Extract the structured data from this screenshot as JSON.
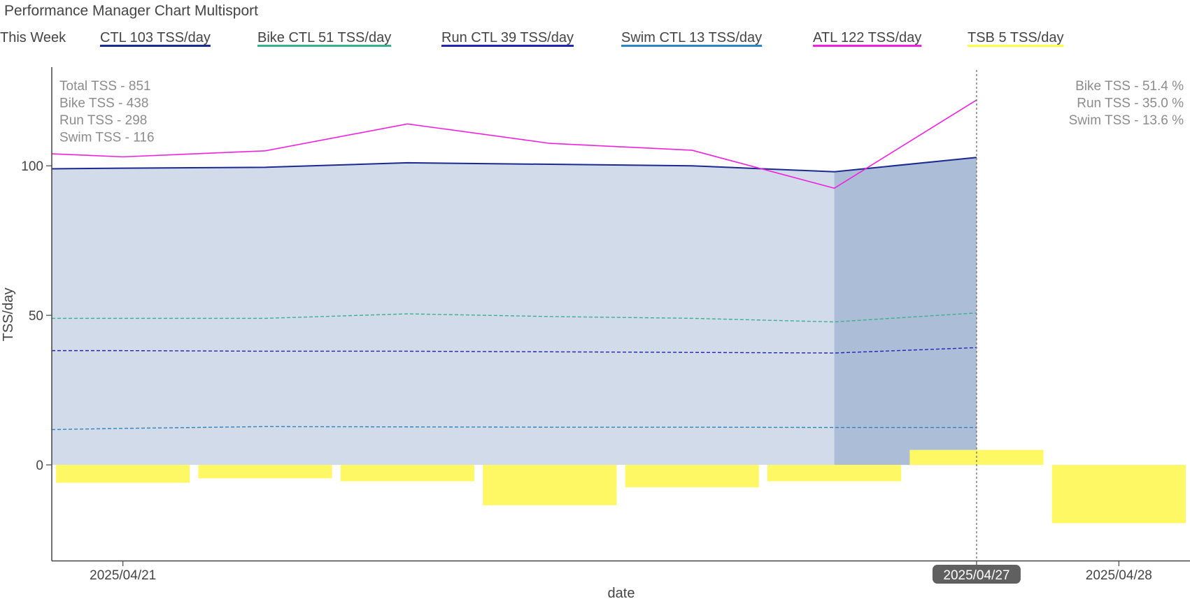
{
  "header": {
    "title": "Performance Manager Chart Multisport",
    "week_label": "This Week"
  },
  "legend": [
    {
      "label": "CTL  103 TSS/day",
      "color": "#1b2a8f"
    },
    {
      "label": "Bike CTL  51 TSS/day",
      "color": "#3cb08c"
    },
    {
      "label": "Run CTL  39 TSS/day",
      "color": "#2226b5"
    },
    {
      "label": "Swim CTL  13 TSS/day",
      "color": "#2b86c3"
    },
    {
      "label": "ATL  122 TSS/day",
      "color": "#ee22dd"
    },
    {
      "label": "TSB  5 TSS/day",
      "color": "#ffff44"
    }
  ],
  "stats_left": [
    "Total TSS - 851",
    "Bike TSS - 438",
    "Run TSS - 298",
    "Swim TSS - 116"
  ],
  "stats_right": [
    "Bike TSS - 51.4 %",
    "Run TSS - 35.0 %",
    "Swim TSS - 13.6 %"
  ],
  "chart_data": {
    "type": "line",
    "xlabel": "date",
    "ylabel": "TSS/day",
    "x": [
      "2025/04/21",
      "2025/04/22",
      "2025/04/23",
      "2025/04/24",
      "2025/04/25",
      "2025/04/26",
      "2025/04/27"
    ],
    "x_tick_labels": [
      "2025/04/21",
      "2025/04/27",
      "2025/04/28"
    ],
    "highlighted_date": "2025/04/27",
    "xlim": [
      "2025/04/20 12:00",
      "2025/04/28 12:00"
    ],
    "ylim": [
      -32,
      133
    ],
    "y_ticks": [
      0,
      50,
      100
    ],
    "grid": false,
    "series": [
      {
        "name": "CTL",
        "style": "area-solid",
        "color": "#1b2a8f",
        "fill": "#d1dbe9",
        "current_fill": "#abbdd7",
        "x": [
          "2025/04/20 12:00",
          "2025/04/21",
          "2025/04/22",
          "2025/04/23",
          "2025/04/24",
          "2025/04/25",
          "2025/04/26",
          "2025/04/27"
        ],
        "values": [
          99,
          99.2,
          99.5,
          101,
          100.5,
          100,
          98,
          102.8
        ]
      },
      {
        "name": "Bike CTL",
        "style": "dashed",
        "color": "#3cb08c",
        "x": [
          "2025/04/20 12:00",
          "2025/04/21",
          "2025/04/22",
          "2025/04/23",
          "2025/04/24",
          "2025/04/25",
          "2025/04/26",
          "2025/04/27"
        ],
        "values": [
          49,
          49,
          49,
          50.5,
          49.6,
          49,
          47.8,
          50.8
        ]
      },
      {
        "name": "Run CTL",
        "style": "dashed",
        "color": "#2226b5",
        "x": [
          "2025/04/20 12:00",
          "2025/04/21",
          "2025/04/22",
          "2025/04/23",
          "2025/04/24",
          "2025/04/25",
          "2025/04/26",
          "2025/04/27"
        ],
        "values": [
          38.2,
          38.2,
          38,
          38,
          37.8,
          37.6,
          37.4,
          39.2
        ]
      },
      {
        "name": "Swim CTL",
        "style": "dashed",
        "color": "#2b86c3",
        "x": [
          "2025/04/20 12:00",
          "2025/04/21",
          "2025/04/22",
          "2025/04/23",
          "2025/04/24",
          "2025/04/25",
          "2025/04/26",
          "2025/04/27"
        ],
        "values": [
          11.8,
          12.2,
          12.8,
          12.7,
          12.6,
          12.6,
          12.5,
          12.5
        ]
      },
      {
        "name": "ATL",
        "style": "solid",
        "color": "#ee22dd",
        "x": [
          "2025/04/20 12:00",
          "2025/04/21",
          "2025/04/22",
          "2025/04/23",
          "2025/04/24",
          "2025/04/25",
          "2025/04/26",
          "2025/04/27"
        ],
        "values": [
          104,
          103,
          105,
          114,
          107.5,
          105.2,
          92.5,
          122
        ]
      }
    ],
    "tsb_bars": {
      "name": "TSB",
      "color": "#fff865",
      "x": [
        "2025/04/21",
        "2025/04/22",
        "2025/04/23",
        "2025/04/24",
        "2025/04/25",
        "2025/04/26",
        "2025/04/27",
        "2025/04/28"
      ],
      "values": [
        -6,
        -4.5,
        -5.5,
        -13.5,
        -7.5,
        -5.5,
        5,
        -19.5
      ]
    }
  }
}
